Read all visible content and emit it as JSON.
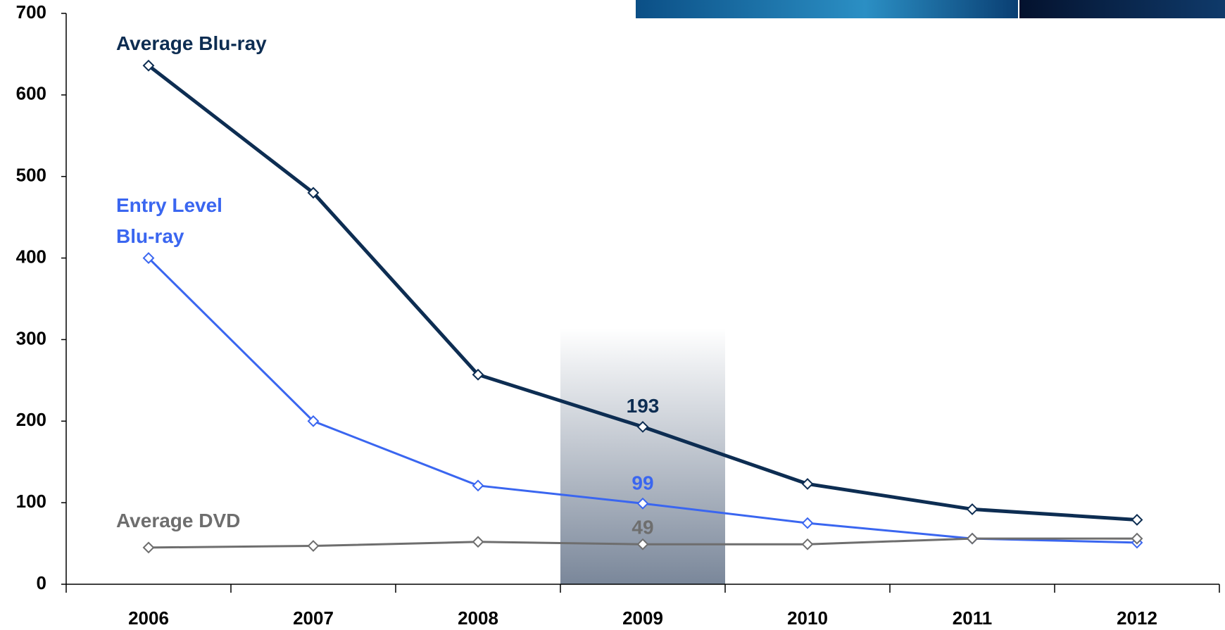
{
  "chart_data": {
    "type": "line",
    "categories": [
      "2006",
      "2007",
      "2008",
      "2009",
      "2010",
      "2011",
      "2012"
    ],
    "series": [
      {
        "name": "Average Blu-ray",
        "color": "#0d2d52",
        "values": [
          636,
          480,
          257,
          193,
          123,
          92,
          79
        ]
      },
      {
        "name": "Entry Level Blu-ray",
        "color": "#3a66f0",
        "values": [
          400,
          200,
          121,
          99,
          75,
          56,
          51
        ]
      },
      {
        "name": "Average DVD",
        "color": "#6e6e6e",
        "values": [
          45,
          47,
          52,
          49,
          49,
          56,
          56
        ]
      }
    ],
    "highlight_index": 3,
    "ylim": [
      0,
      700
    ],
    "yticks": [
      0,
      100,
      200,
      300,
      400,
      500,
      600,
      700
    ]
  }
}
